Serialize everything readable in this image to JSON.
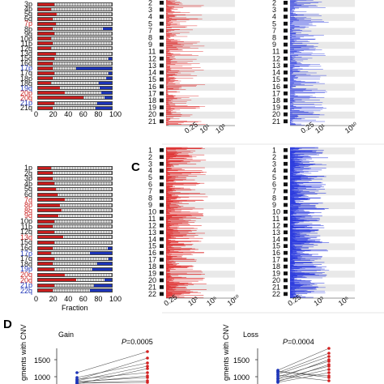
{
  "panel_letters": {
    "c": "C",
    "d": "D"
  },
  "top_bar_chart": {
    "arms": [
      {
        "label": "3p",
        "color": "#111111",
        "red": 0.22,
        "blue": 0.0
      },
      {
        "label": "4p",
        "color": "#111111",
        "red": 0.18,
        "blue": 0.0
      },
      {
        "label": "5q",
        "color": "#111111",
        "red": 0.25,
        "blue": 0.0
      },
      {
        "label": "6q",
        "color": "#111111",
        "red": 0.2,
        "blue": 0.0
      },
      {
        "label": "7p",
        "color": "#c81e1e",
        "red": 0.24,
        "blue": 0.0
      },
      {
        "label": "8p",
        "color": "#111111",
        "red": 0.2,
        "blue": 0.12
      },
      {
        "label": "9q",
        "color": "#111111",
        "red": 0.22,
        "blue": 0.0
      },
      {
        "label": "10p",
        "color": "#111111",
        "red": 0.18,
        "blue": 0.0
      },
      {
        "label": "11p",
        "color": "#111111",
        "red": 0.2,
        "blue": 0.0
      },
      {
        "label": "12q",
        "color": "#111111",
        "red": 0.18,
        "blue": 0.0
      },
      {
        "label": "13q",
        "color": "#111111",
        "red": 0.24,
        "blue": 0.0
      },
      {
        "label": "15q",
        "color": "#111111",
        "red": 0.22,
        "blue": 0.04
      },
      {
        "label": "16q",
        "color": "#111111",
        "red": 0.2,
        "blue": 0.0
      },
      {
        "label": "17p",
        "color": "#1d34b8",
        "red": 0.2,
        "blue": 0.48
      },
      {
        "label": "17q",
        "color": "#111111",
        "red": 0.22,
        "blue": 0.04
      },
      {
        "label": "18p",
        "color": "#111111",
        "red": 0.2,
        "blue": 0.08
      },
      {
        "label": "18q",
        "color": "#111111",
        "red": 0.18,
        "blue": 0.18
      },
      {
        "label": "19q",
        "color": "#1d34b8",
        "red": 0.3,
        "blue": 0.16
      },
      {
        "label": "20p",
        "color": "#c81e1e",
        "red": 0.36,
        "blue": 0.14
      },
      {
        "label": "20q",
        "color": "#c81e1e",
        "red": 0.62,
        "blue": 0.1
      },
      {
        "label": "21p",
        "color": "#1d34b8",
        "red": 0.22,
        "blue": 0.2
      },
      {
        "label": "21q",
        "color": "#111111",
        "red": 0.2,
        "blue": 0.22
      }
    ],
    "x_ticks": [
      "0",
      "20",
      "40",
      "60",
      "80",
      "100"
    ]
  },
  "bottom_bar_chart": {
    "arms": [
      {
        "label": "1p",
        "color": "#111111",
        "red": 0.18,
        "blue": 0.0
      },
      {
        "label": "2q",
        "color": "#111111",
        "red": 0.2,
        "blue": 0.0
      },
      {
        "label": "3p",
        "color": "#111111",
        "red": 0.2,
        "blue": 0.0
      },
      {
        "label": "4p",
        "color": "#111111",
        "red": 0.22,
        "blue": 0.0
      },
      {
        "label": "5q",
        "color": "#111111",
        "red": 0.24,
        "blue": 0.0
      },
      {
        "label": "6q",
        "color": "#111111",
        "red": 0.26,
        "blue": 0.0
      },
      {
        "label": "7q",
        "color": "#c81e1e",
        "red": 0.36,
        "blue": 0.0
      },
      {
        "label": "8p",
        "color": "#c81e1e",
        "red": 0.3,
        "blue": 0.0
      },
      {
        "label": "8q",
        "color": "#c81e1e",
        "red": 0.32,
        "blue": 0.0
      },
      {
        "label": "9q",
        "color": "#c81e1e",
        "red": 0.28,
        "blue": 0.0
      },
      {
        "label": "10p",
        "color": "#111111",
        "red": 0.22,
        "blue": 0.0
      },
      {
        "label": "11p",
        "color": "#111111",
        "red": 0.2,
        "blue": 0.0
      },
      {
        "label": "12q",
        "color": "#111111",
        "red": 0.22,
        "blue": 0.0
      },
      {
        "label": "13q",
        "color": "#c81e1e",
        "red": 0.34,
        "blue": 0.0
      },
      {
        "label": "15q",
        "color": "#111111",
        "red": 0.22,
        "blue": 0.0
      },
      {
        "label": "16q",
        "color": "#111111",
        "red": 0.2,
        "blue": 0.06
      },
      {
        "label": "17p",
        "color": "#1d34b8",
        "red": 0.18,
        "blue": 0.3
      },
      {
        "label": "17q",
        "color": "#111111",
        "red": 0.22,
        "blue": 0.04
      },
      {
        "label": "18q",
        "color": "#111111",
        "red": 0.2,
        "blue": 0.2
      },
      {
        "label": "19p",
        "color": "#1d34b8",
        "red": 0.22,
        "blue": 0.26
      },
      {
        "label": "20q",
        "color": "#c81e1e",
        "red": 0.36,
        "blue": 0.0
      },
      {
        "label": "20q",
        "color": "#c81e1e",
        "red": 0.52,
        "blue": 0.1
      },
      {
        "label": "21p",
        "color": "#1d34b8",
        "red": 0.22,
        "blue": 0.24
      },
      {
        "label": "22q",
        "color": "#1d34b8",
        "red": 0.2,
        "blue": 0.3
      }
    ],
    "x_ticks": [
      "0",
      "20",
      "40",
      "60",
      "80",
      "100"
    ],
    "xlabel": "Fraction"
  },
  "genome_plots": {
    "chromosomes": [
      "1",
      "2",
      "3",
      "4",
      "5",
      "6",
      "7",
      "8",
      "9",
      "10",
      "11",
      "12",
      "13",
      "14",
      "15",
      "16",
      "17",
      "18",
      "19",
      "20",
      "21",
      "22"
    ],
    "top_visible_chromosomes": [
      "2",
      "3",
      "4",
      "5",
      "7",
      "8",
      "9",
      "11",
      "12",
      "13",
      "14",
      "15",
      "16",
      "17",
      "18",
      "19",
      "20",
      "21"
    ],
    "bottom_visible_chromosomes": [
      "1",
      "2",
      "3",
      "4",
      "5",
      "6",
      "7",
      "8",
      "9",
      "10",
      "11",
      "12",
      "13",
      "14",
      "15",
      "16",
      "17",
      "18",
      "19",
      "20",
      "21",
      "22"
    ],
    "x_ticks_red": [
      "0.25",
      "10¹",
      "10³"
    ],
    "x_ticks_blue": [
      "0.25",
      "10¹",
      "10¹⁰"
    ],
    "x_ticks_red_bottom": [
      "0.25",
      "10³",
      "10⁶",
      "10¹⁰"
    ],
    "x_ticks_blue_bottom": [
      "0.25",
      "10³",
      "10⁶"
    ],
    "red_color": "#dd2222",
    "blue_color": "#2233dd"
  },
  "panel_d": {
    "gain": {
      "title": "Gain",
      "p_label": "P",
      "p_value": "=0.0005"
    },
    "loss": {
      "title": "Loss",
      "p_label": "P",
      "p_value": "=0.0004"
    },
    "ylabel": "gments with CNV",
    "y_ticks_gain": [
      "1500",
      "1000"
    ],
    "y_ticks_loss": [
      "1500",
      "1000"
    ]
  }
}
